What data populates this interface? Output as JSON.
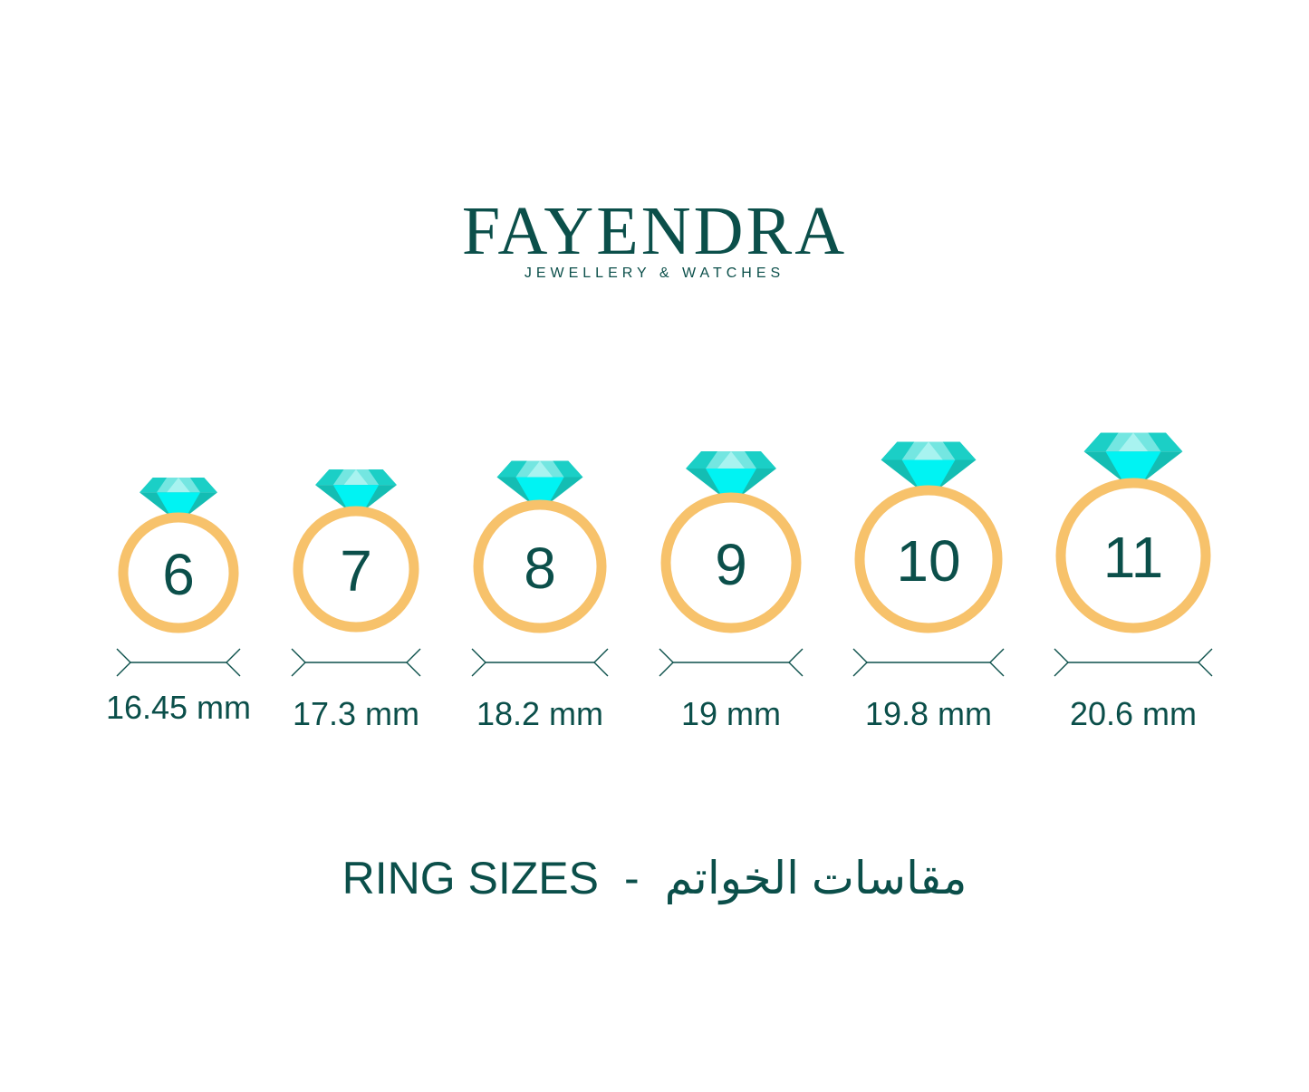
{
  "brand": {
    "name": "FAYENDRA",
    "tagline": "JEWELLERY & WATCHES"
  },
  "colors": {
    "text": "#0b4f4a",
    "ring": "#f7c26b",
    "gem": "#1bcfc6",
    "gem_center": "#00f3f3",
    "gem_light": "#74e6e1"
  },
  "rings": [
    {
      "size": "6",
      "diameter": "16.45 mm"
    },
    {
      "size": "7",
      "diameter": "17.3 mm"
    },
    {
      "size": "8",
      "diameter": "18.2 mm"
    },
    {
      "size": "9",
      "diameter": "19 mm"
    },
    {
      "size": "10",
      "diameter": "19.8 mm"
    },
    {
      "size": "11",
      "diameter": "20.6 mm"
    }
  ],
  "footer": {
    "title_en": "RING SIZES",
    "separator": "-",
    "title_ar": "مقاسات الخواتم"
  }
}
